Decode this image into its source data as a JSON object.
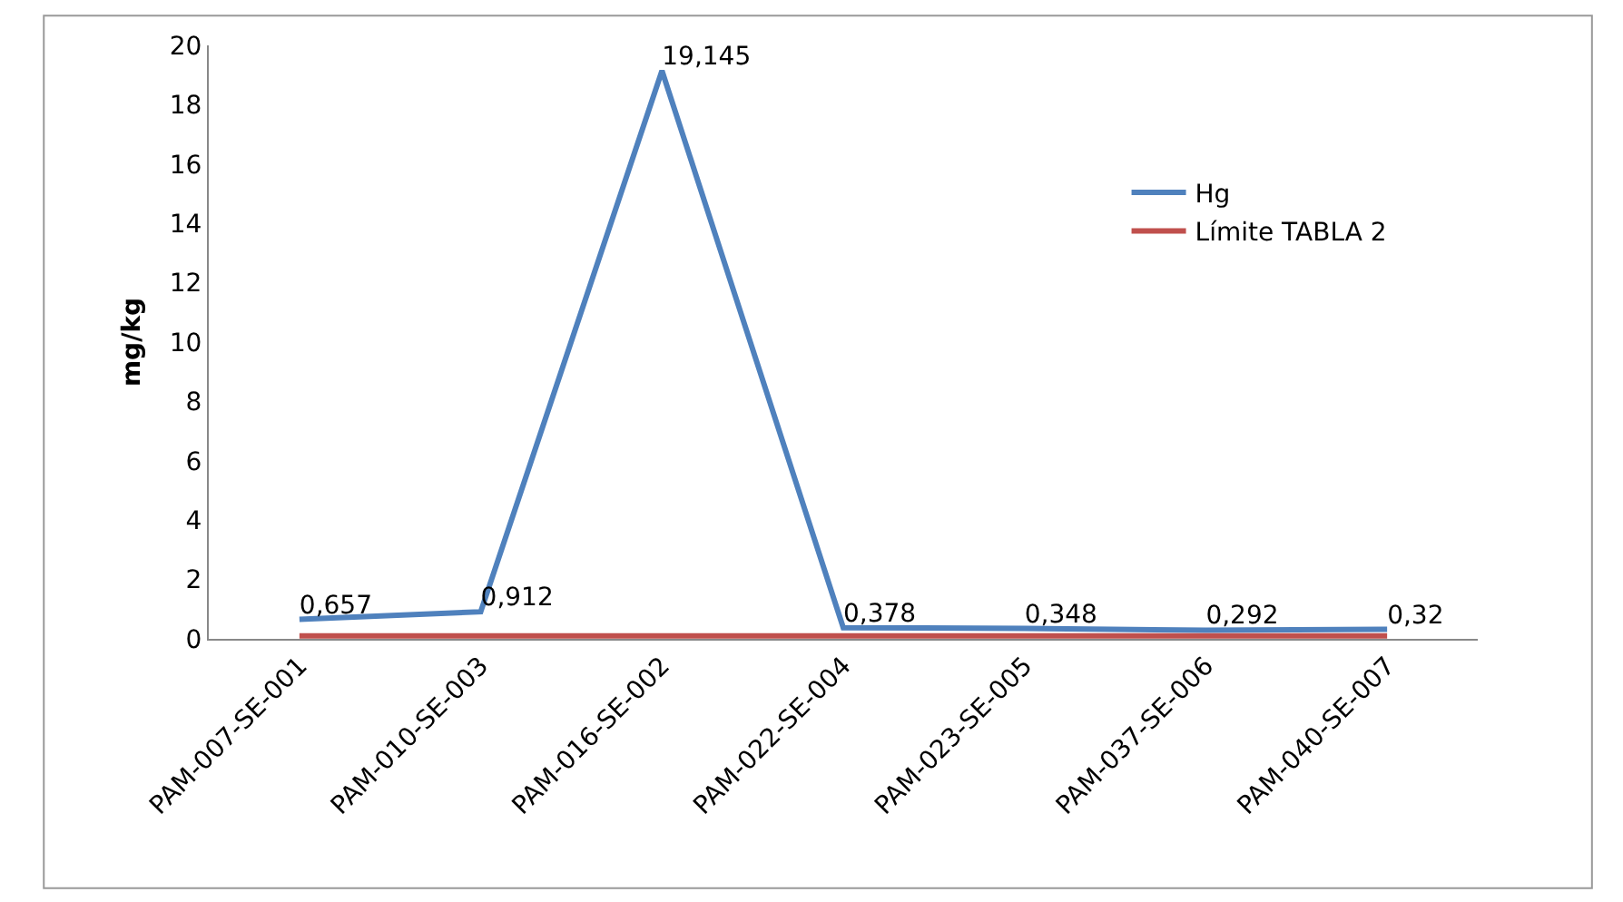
{
  "chart_data": {
    "type": "line",
    "ylabel": "mg/kg",
    "categories": [
      "PAM-007-SE-001",
      "PAM-010-SE-003",
      "PAM-016-SE-002",
      "PAM-022-SE-004",
      "PAM-023-SE-005",
      "PAM-037-SE-006",
      "PAM-040-SE-007"
    ],
    "series": [
      {
        "name": "Hg",
        "color": "#4f81bd",
        "values": [
          0.657,
          0.912,
          19.145,
          0.378,
          0.348,
          0.292,
          0.32
        ],
        "value_labels": [
          "0,657",
          "0,912",
          "19,145",
          "0,378",
          "0,348",
          "0,292",
          "0,32"
        ]
      },
      {
        "name": "Límite TABLA 2",
        "color": "#c0504d",
        "values": [
          0.1,
          0.1,
          0.1,
          0.1,
          0.1,
          0.1,
          0.1
        ]
      }
    ],
    "ylim": [
      0,
      20
    ],
    "yticks": [
      0,
      2,
      4,
      6,
      8,
      10,
      12,
      14,
      16,
      18,
      20
    ],
    "grid": false,
    "legend": "right",
    "marker": "none",
    "line_style": "solid"
  }
}
